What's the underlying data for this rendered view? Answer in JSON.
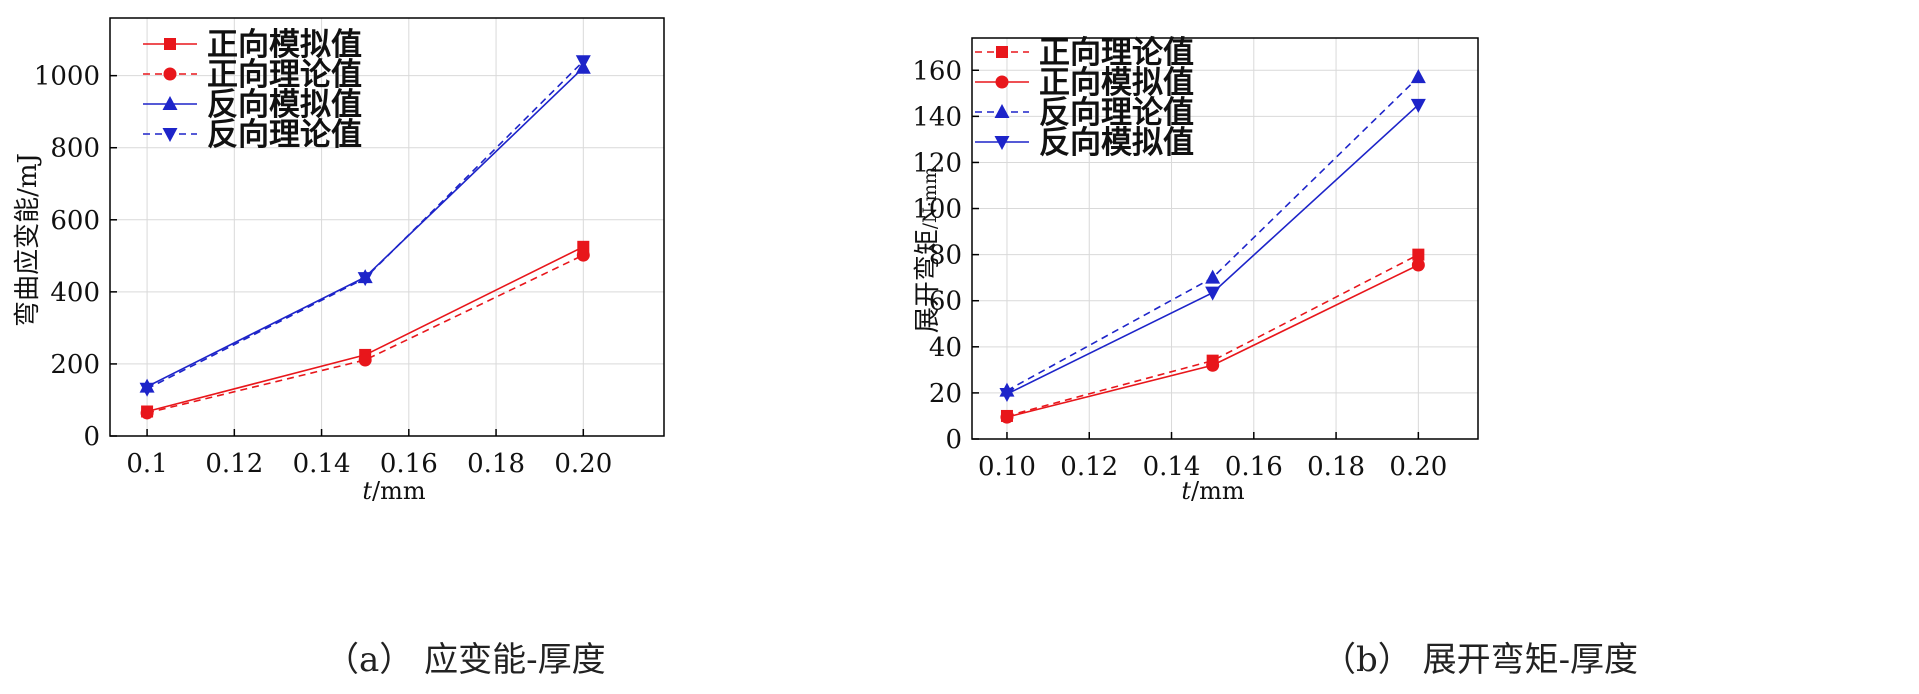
{
  "colors": {
    "red": "#e8161b",
    "blue": "#1d24c9",
    "axis": "#000000",
    "grid": "#d9d9d9"
  },
  "chart_data": [
    {
      "type": "line",
      "caption": "（a）  应变能-厚度",
      "xlabel_italic": "t",
      "xlabel_unit": "/mm",
      "ylabel": "弯曲应变能/mJ",
      "x_ticks": [
        "0.1",
        "0.12",
        "0.14",
        "0.16",
        "0.18",
        "0.20"
      ],
      "x_tick_values": [
        0.1,
        0.12,
        0.14,
        0.16,
        0.18,
        0.2
      ],
      "y_ticks": [
        "0",
        "200",
        "400",
        "600",
        "800",
        "1000"
      ],
      "y_tick_values": [
        0,
        200,
        400,
        600,
        800,
        1000
      ],
      "xlim": [
        0.0915,
        0.2185
      ],
      "ylim": [
        0,
        1160
      ],
      "grid": true,
      "legend_position": "top-left",
      "x": [
        0.1,
        0.15,
        0.2
      ],
      "series": [
        {
          "name": "正向模拟值",
          "color": "red",
          "dash": false,
          "marker": "square",
          "values": [
            68,
            225,
            525
          ]
        },
        {
          "name": "正向理论值",
          "color": "red",
          "dash": true,
          "marker": "circle",
          "values": [
            64,
            211,
            502
          ]
        },
        {
          "name": "反向模拟值",
          "color": "blue",
          "dash": false,
          "marker": "triangle-up",
          "values": [
            137,
            441,
            1022
          ]
        },
        {
          "name": "反向理论值",
          "color": "blue",
          "dash": true,
          "marker": "triangle-down",
          "values": [
            131,
            438,
            1040
          ]
        }
      ]
    },
    {
      "type": "line",
      "caption": "（b）  展开弯矩-厚度",
      "xlabel_italic": "t",
      "xlabel_unit": "/mm",
      "ylabel": "展开弯矩",
      "ylabel_unit": "/N·mm",
      "x_ticks": [
        "0.10",
        "0.12",
        "0.14",
        "0.16",
        "0.18",
        "0.20"
      ],
      "x_tick_values": [
        0.1,
        0.12,
        0.14,
        0.16,
        0.18,
        0.2
      ],
      "y_ticks": [
        "0",
        "20",
        "40",
        "60",
        "80",
        "100",
        "120",
        "140",
        "160"
      ],
      "y_tick_values": [
        0,
        20,
        40,
        60,
        80,
        100,
        120,
        140,
        160
      ],
      "xlim": [
        0.0915,
        0.2145
      ],
      "ylim": [
        0,
        174
      ],
      "grid": true,
      "legend_position": "top-left",
      "x": [
        0.1,
        0.15,
        0.2
      ],
      "series": [
        {
          "name": "正向理论值",
          "color": "red",
          "dash": true,
          "marker": "square",
          "values": [
            10,
            34,
            80
          ]
        },
        {
          "name": "正向模拟值",
          "color": "red",
          "dash": false,
          "marker": "circle",
          "values": [
            9.5,
            32,
            75.5
          ]
        },
        {
          "name": "反向理论值",
          "color": "blue",
          "dash": true,
          "marker": "triangle-up",
          "values": [
            21,
            70,
            157
          ]
        },
        {
          "name": "反向模拟值",
          "color": "blue",
          "dash": false,
          "marker": "triangle-down",
          "values": [
            19.5,
            63.5,
            145
          ]
        }
      ]
    }
  ]
}
